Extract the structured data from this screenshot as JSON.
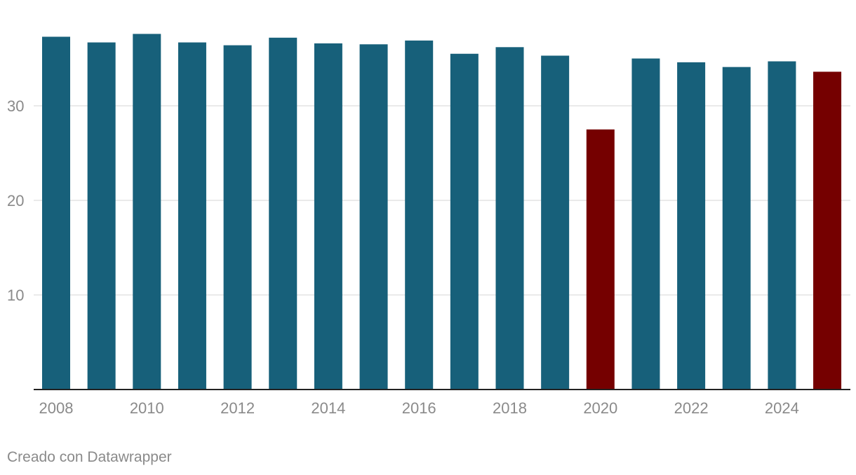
{
  "chart_data": {
    "type": "bar",
    "title": "",
    "xlabel": "",
    "ylabel": "",
    "categories": [
      "2008",
      "2009",
      "2010",
      "2011",
      "2012",
      "2013",
      "2014",
      "2015",
      "2016",
      "2017",
      "2018",
      "2019",
      "2020",
      "2021",
      "2022",
      "2023",
      "2024",
      "2025"
    ],
    "values": [
      37.3,
      36.7,
      37.6,
      36.7,
      36.4,
      37.2,
      36.6,
      36.5,
      36.9,
      35.5,
      36.2,
      35.3,
      27.5,
      35.0,
      34.6,
      34.1,
      34.7,
      33.6
    ],
    "x_tick_labels": [
      "2008",
      "2010",
      "2012",
      "2014",
      "2016",
      "2018",
      "2020",
      "2022",
      "2024"
    ],
    "y_ticks": [
      10,
      20,
      30
    ],
    "ylim": [
      0,
      40
    ],
    "grid": true,
    "legend": "none",
    "colors": {
      "default": "#17607a",
      "highlight": "#750000"
    },
    "highlighted_categories": [
      "2020",
      "2025"
    ]
  },
  "footer": {
    "credit": "Creado con Datawrapper"
  }
}
